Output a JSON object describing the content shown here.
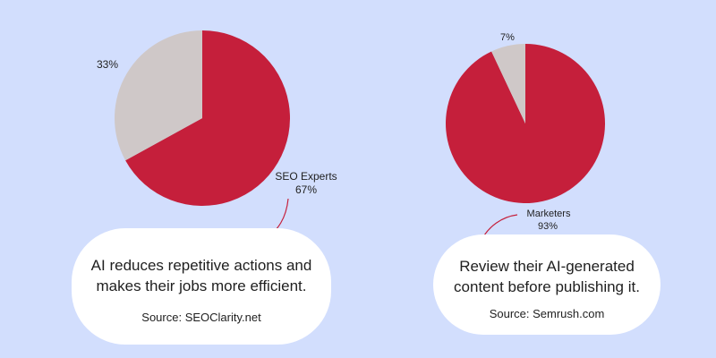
{
  "colors": {
    "background": "#d2defd",
    "primary_slice": "#c51f3b",
    "secondary_slice": "#cfc8c8",
    "bubble": "#ffffff",
    "arrow": "#c51f3b",
    "text": "#1f1f1f"
  },
  "chart_data": [
    {
      "type": "pie",
      "title": "",
      "slices": [
        {
          "label": "SEO Experts",
          "value": 67,
          "value_label": "67%",
          "color": "#c51f3b"
        },
        {
          "label": "",
          "value": 33,
          "value_label": "33%",
          "color": "#cfc8c8"
        }
      ],
      "annotation": {
        "statement": "AI reduces repetitive actions and\nmakes their jobs more efficient.",
        "source": "Source: SEOClarity.net"
      }
    },
    {
      "type": "pie",
      "title": "",
      "slices": [
        {
          "label": "Marketers",
          "value": 93,
          "value_label": "93%",
          "color": "#c51f3b"
        },
        {
          "label": "",
          "value": 7,
          "value_label": "7%",
          "color": "#cfc8c8"
        }
      ],
      "annotation": {
        "statement": "Review their AI-generated\ncontent before publishing it.",
        "source": "Source: Semrush.com"
      }
    }
  ]
}
